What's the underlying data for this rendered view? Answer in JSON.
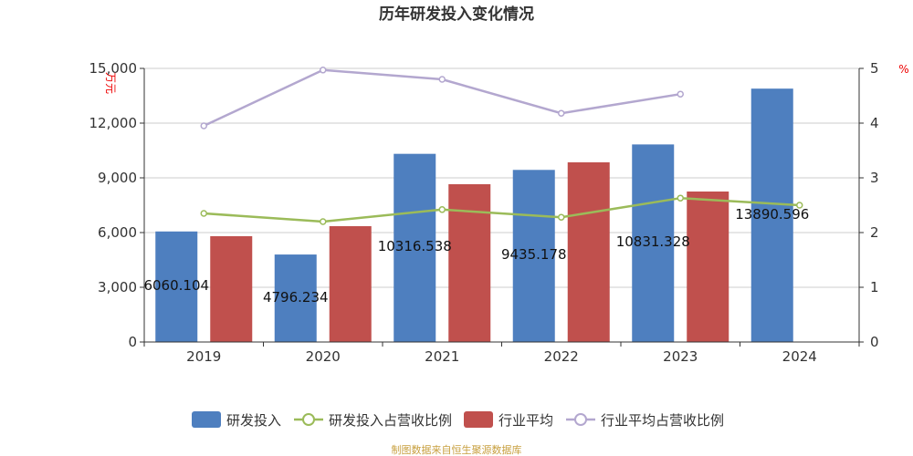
{
  "chart_data": {
    "type": "bar",
    "title": "历年研发投入变化情况",
    "categories": [
      "2019",
      "2020",
      "2021",
      "2022",
      "2023",
      "2024"
    ],
    "left_axis": {
      "unit": "万元",
      "ylim": [
        0,
        15000
      ],
      "ticks": [
        "0",
        "3,000",
        "6,000",
        "9,000",
        "12,000",
        "15,000"
      ]
    },
    "right_axis": {
      "unit": "%",
      "ylim": [
        0,
        5
      ],
      "ticks": [
        "0",
        "1",
        "2",
        "3",
        "4",
        "5"
      ]
    },
    "grid": true,
    "legend_position": "bottom",
    "series": [
      {
        "name": "研发投入",
        "type": "bar",
        "axis": "left",
        "color": "#4e7fbf",
        "values": [
          6060.104,
          4796.234,
          10316.538,
          9435.178,
          10831.328,
          13890.596
        ],
        "labels": [
          "6060.104",
          "4796.234",
          "10316.538",
          "9435.178",
          "10831.328",
          "13890.596"
        ]
      },
      {
        "name": "研发投入占营收比例",
        "type": "line",
        "axis": "right",
        "color": "#9bbb59",
        "values": [
          2.35,
          2.2,
          2.42,
          2.28,
          2.63,
          2.5
        ]
      },
      {
        "name": "行业平均",
        "type": "bar",
        "axis": "left",
        "color": "#c0504d",
        "values": [
          5800,
          6350,
          8650,
          9850,
          8250,
          null
        ]
      },
      {
        "name": "行业平均占营收比例",
        "type": "line",
        "axis": "right",
        "color": "#b3a7cf",
        "values": [
          3.95,
          4.97,
          4.8,
          4.18,
          4.53,
          null
        ]
      }
    ]
  },
  "footer": {
    "source": "制图数据来自恒生聚源数据库"
  }
}
